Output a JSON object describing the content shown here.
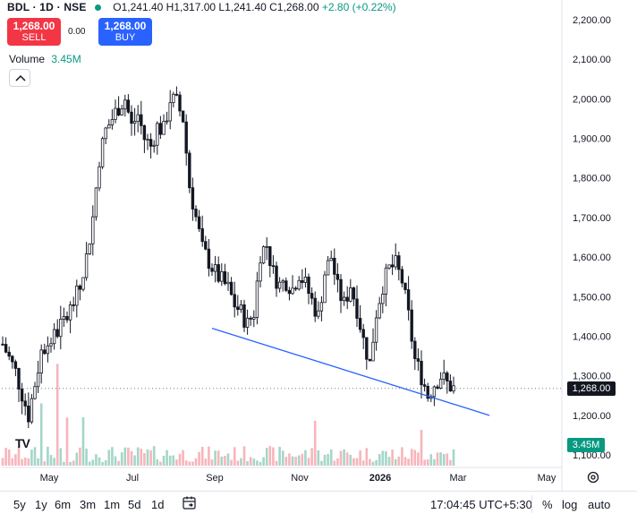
{
  "header": {
    "symbol": "BDL · 1D · NSE",
    "open": "O1,241.40",
    "high": "H1,317.00",
    "low": "L1,241.40",
    "close": "C1,268.00",
    "change": "+2.80 (+0.22%)"
  },
  "trade": {
    "sell_price": "1,268.00",
    "sell_label": "SELL",
    "spread": "0.00",
    "buy_price": "1,268.00",
    "buy_label": "BUY"
  },
  "volume_label": "Volume",
  "volume_value": "3.45M",
  "logo_text": "TV",
  "last_price_label": "1,268.00",
  "volume_tag": "3.45M",
  "toolbar": {
    "timeframes": [
      "5y",
      "1y",
      "6m",
      "3m",
      "1m",
      "5d",
      "1d"
    ],
    "clock": "17:04:45 UTC+5:30",
    "percent": "%",
    "log": "log",
    "auto": "auto"
  },
  "chart_data": {
    "type": "candlestick",
    "y_axis": {
      "min": 1100,
      "max": 2200,
      "ticks": [
        "2,200.00",
        "2,100.00",
        "2,000.00",
        "1,900.00",
        "1,800.00",
        "1,700.00",
        "1,600.00",
        "1,500.00",
        "1,400.00",
        "1,300.00",
        "1,200.00",
        "1,100.00"
      ],
      "tick_values": [
        2200,
        2100,
        2000,
        1900,
        1800,
        1700,
        1600,
        1500,
        1400,
        1300,
        1200,
        1100
      ]
    },
    "x_axis": {
      "labels": [
        "May",
        "Jul",
        "Sep",
        "Nov",
        "2026",
        "Mar",
        "May"
      ],
      "bold": [
        false,
        false,
        false,
        false,
        true,
        false,
        false
      ]
    },
    "last_price": 1268,
    "approx_path_close": [
      [
        0,
        1380
      ],
      [
        4,
        1310
      ],
      [
        8,
        1200
      ],
      [
        12,
        1360
      ],
      [
        16,
        1400
      ],
      [
        20,
        1450
      ],
      [
        24,
        1520
      ],
      [
        26,
        1600
      ],
      [
        28,
        1700
      ],
      [
        30,
        1850
      ],
      [
        32,
        1920
      ],
      [
        34,
        1950
      ],
      [
        36,
        1980
      ],
      [
        38,
        2000
      ],
      [
        40,
        1930
      ],
      [
        42,
        1960
      ],
      [
        44,
        1900
      ],
      [
        46,
        1880
      ],
      [
        48,
        1930
      ],
      [
        50,
        1920
      ],
      [
        52,
        2000
      ],
      [
        54,
        1990
      ],
      [
        56,
        1950
      ],
      [
        58,
        1780
      ],
      [
        60,
        1700
      ],
      [
        62,
        1620
      ],
      [
        64,
        1590
      ],
      [
        66,
        1560
      ],
      [
        68,
        1540
      ],
      [
        70,
        1520
      ],
      [
        72,
        1480
      ],
      [
        74,
        1460
      ],
      [
        76,
        1430
      ],
      [
        78,
        1460
      ],
      [
        80,
        1610
      ],
      [
        82,
        1630
      ],
      [
        84,
        1560
      ],
      [
        86,
        1530
      ],
      [
        88,
        1540
      ],
      [
        90,
        1520
      ],
      [
        92,
        1560
      ],
      [
        94,
        1530
      ],
      [
        96,
        1490
      ],
      [
        98,
        1450
      ],
      [
        100,
        1560
      ],
      [
        102,
        1600
      ],
      [
        104,
        1520
      ],
      [
        106,
        1480
      ],
      [
        108,
        1530
      ],
      [
        110,
        1470
      ],
      [
        112,
        1390
      ],
      [
        114,
        1330
      ],
      [
        116,
        1460
      ],
      [
        118,
        1530
      ],
      [
        120,
        1570
      ],
      [
        122,
        1580
      ],
      [
        124,
        1540
      ],
      [
        126,
        1450
      ],
      [
        128,
        1340
      ],
      [
        130,
        1300
      ],
      [
        132,
        1250
      ],
      [
        134,
        1280
      ],
      [
        136,
        1300
      ],
      [
        138,
        1280
      ],
      [
        140,
        1268
      ]
    ],
    "trendline": {
      "from": [
        60,
        1420
      ],
      "to": [
        140,
        1200
      ]
    },
    "volume_max": "3.45M"
  }
}
